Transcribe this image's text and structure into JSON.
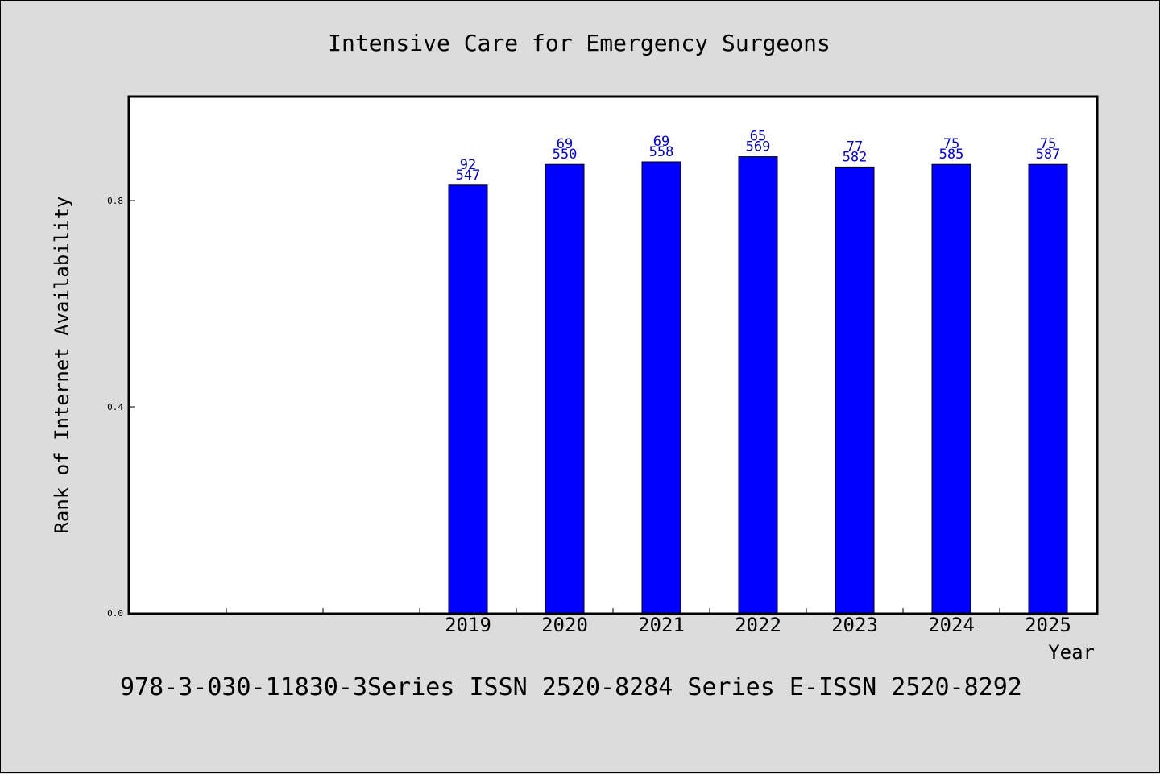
{
  "chart_data": {
    "type": "bar",
    "title": "Intensive Care for Emergency Surgeons",
    "xlabel": "Year",
    "ylabel": "Rank of Internet Availability",
    "categories": [
      "",
      "",
      "",
      "2019",
      "2020",
      "2021",
      "2022",
      "2023",
      "2024",
      "2025"
    ],
    "values": [
      null,
      null,
      null,
      0.83,
      0.87,
      0.875,
      0.885,
      0.865,
      0.87,
      0.87
    ],
    "annotations_top": [
      "",
      "",
      "",
      "92",
      "69",
      "69",
      "65",
      "77",
      "75",
      "75"
    ],
    "annotations_bottom": [
      "",
      "",
      "",
      "547",
      "550",
      "558",
      "569",
      "582",
      "585",
      "587"
    ],
    "ylim": [
      0,
      1.0
    ],
    "yticks": [
      0.0,
      0.4,
      0.8
    ],
    "ytick_labels": [
      "0.0",
      "0.4",
      "0.8"
    ],
    "bar_color": "#0000ff",
    "label_color": "#0000c8",
    "grid": false,
    "legend": "none"
  },
  "footer": "978-3-030-11830-3Series ISSN 2520-8284 Series E-ISSN 2520-8292"
}
